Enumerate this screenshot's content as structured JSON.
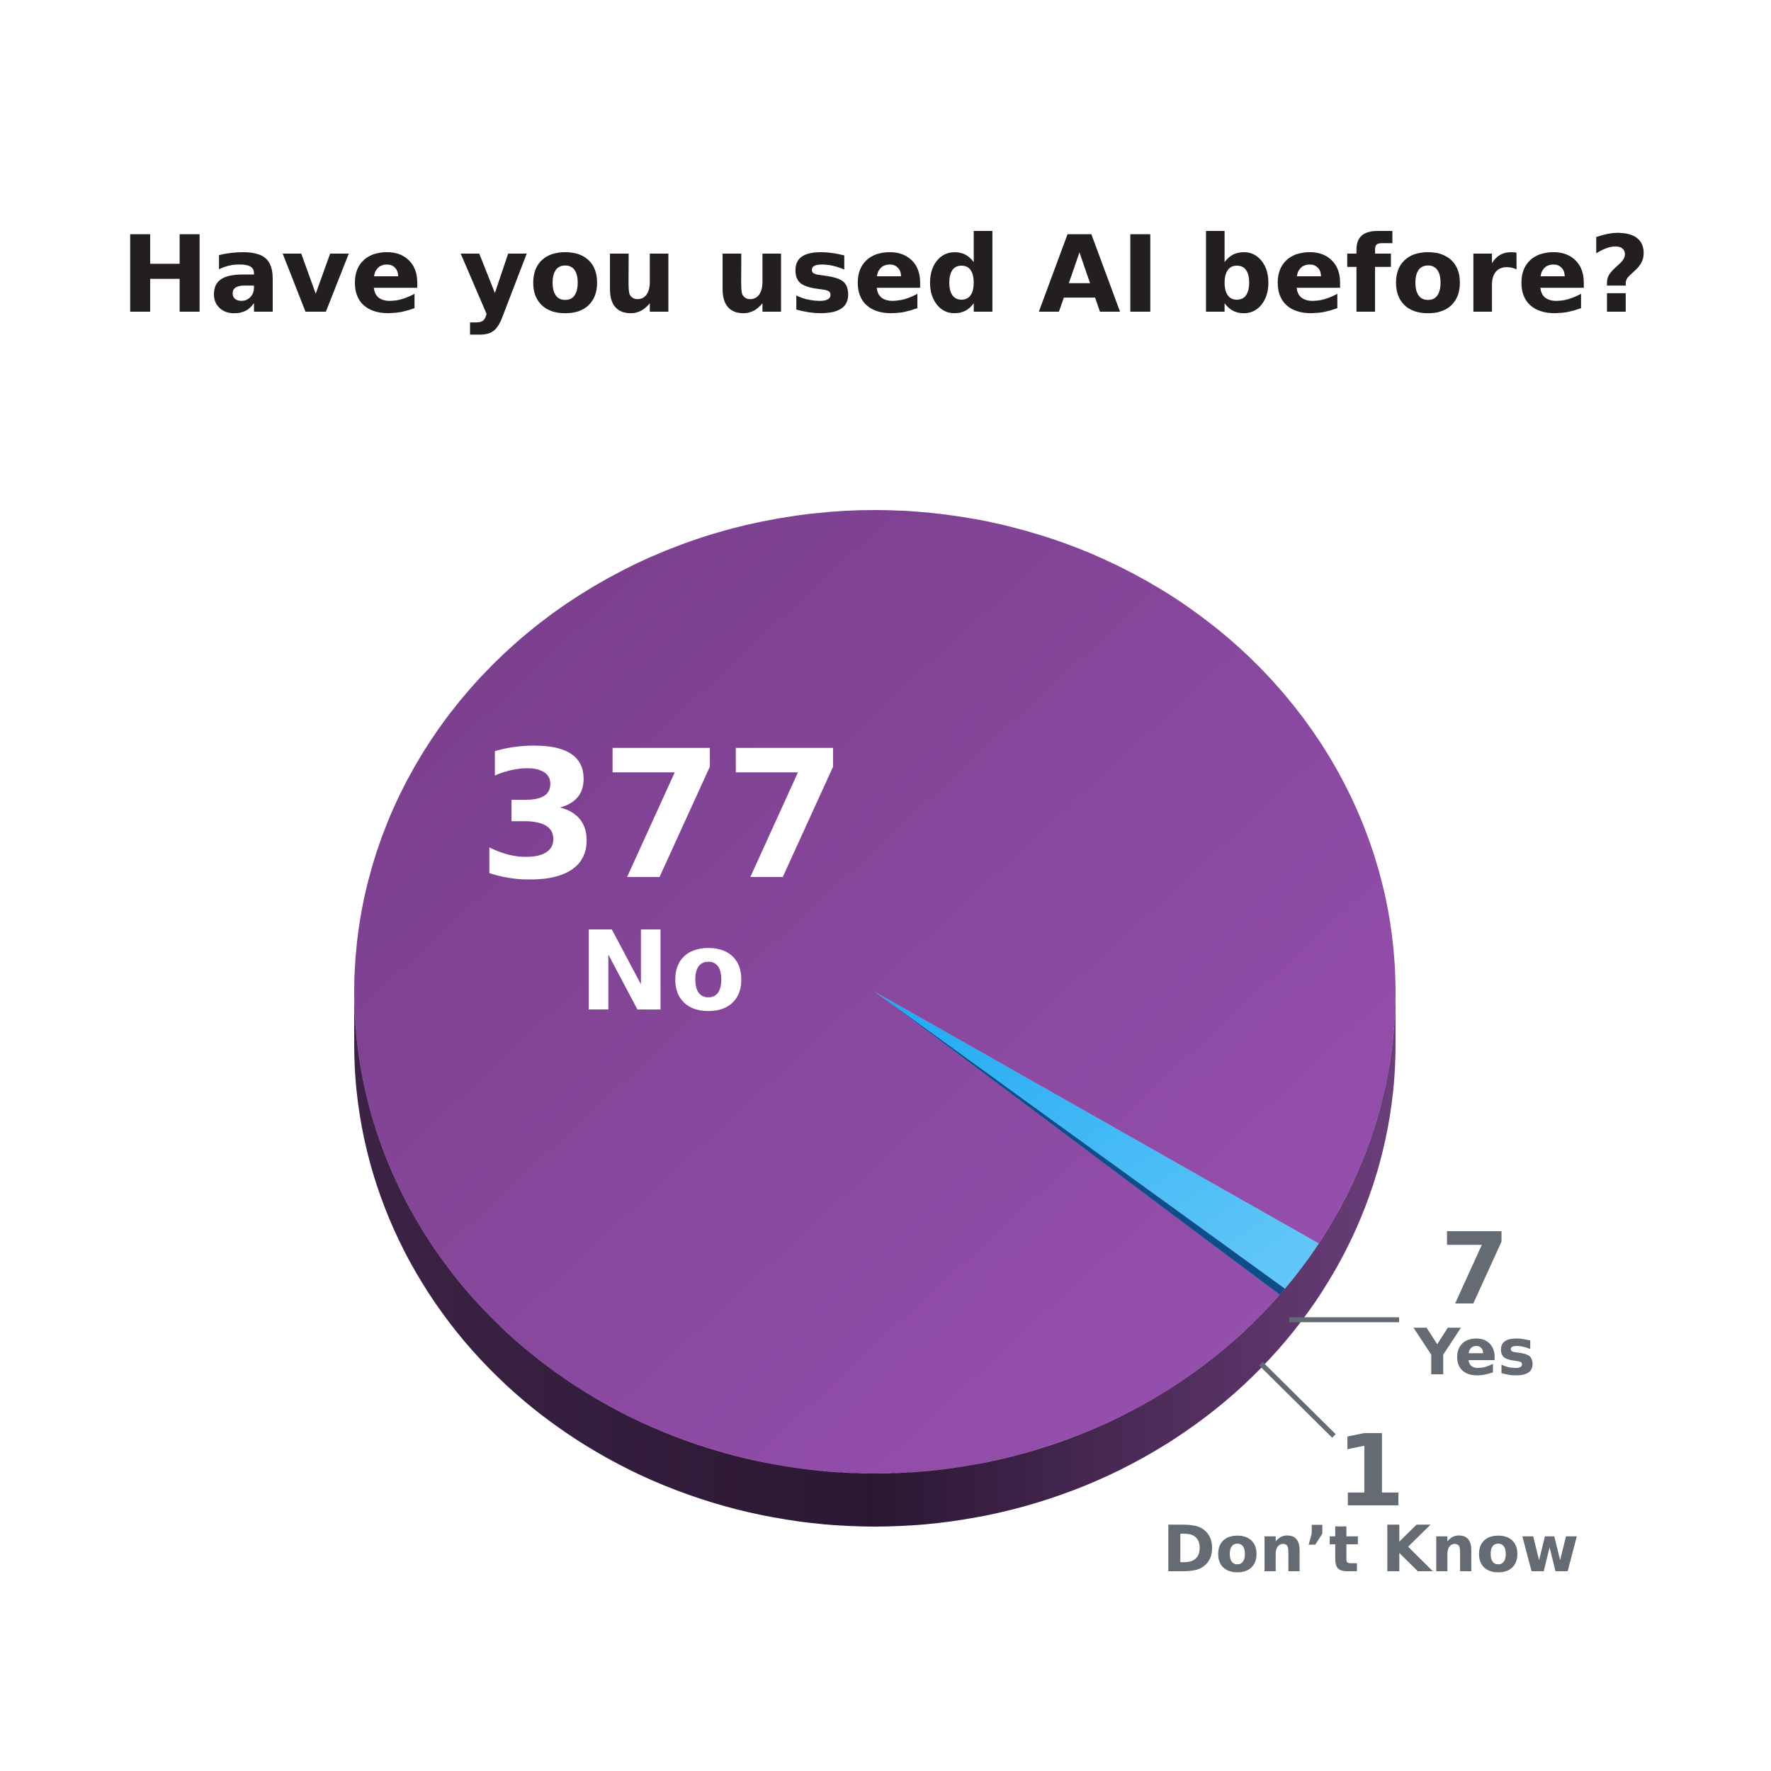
{
  "colors": {
    "no": "#8e4aa3",
    "yes": "#34b6f5",
    "dont_know": "#0d4d8a",
    "label_gray": "#646b72",
    "title": "#231f20"
  },
  "chart_data": {
    "type": "pie",
    "title": "Have you used AI before?",
    "slices": [
      {
        "label": "No",
        "value": 377,
        "display_value": "377",
        "color": "#8e4aa3"
      },
      {
        "label": "Yes",
        "value": 7,
        "display_value": "7",
        "color": "#34b6f5"
      },
      {
        "label": "Don’t Know",
        "value": 1,
        "display_value": "1",
        "color": "#0d4d8a"
      }
    ],
    "style": "3d"
  }
}
